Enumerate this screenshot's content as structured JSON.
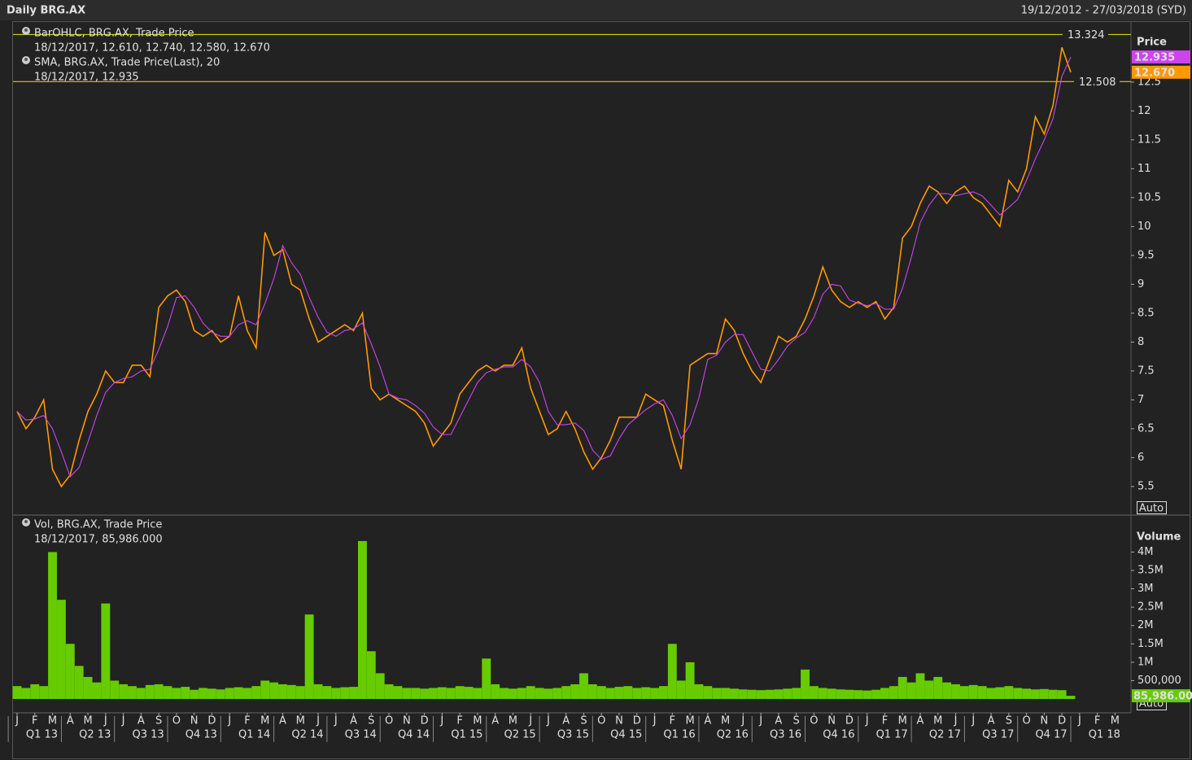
{
  "chart_data": [
    {
      "type": "line",
      "title": "Daily BRG.AX",
      "subtitle": "19/12/2012 - 27/03/2018 (SYD)",
      "y_label": "Price",
      "scale_mode": "Auto",
      "grid": false,
      "xlim": [
        -0.23,
        62.9
      ],
      "ylim": [
        5.02,
        13.54
      ],
      "yticks": [
        5.5,
        6,
        6.5,
        7,
        7.5,
        8,
        8.5,
        9,
        9.5,
        10,
        10.5,
        11,
        11.5,
        12,
        12.5
      ],
      "hlines": [
        13.324,
        12.508
      ],
      "hline_color": "#e8e800",
      "x": [
        0,
        0.5,
        1,
        1.5,
        2,
        2.5,
        3,
        3.5,
        4,
        4.5,
        5,
        5.5,
        6,
        6.5,
        7,
        7.5,
        8,
        8.5,
        9,
        9.5,
        10,
        10.5,
        11,
        11.5,
        12,
        12.5,
        13,
        13.5,
        14,
        14.5,
        15,
        15.5,
        16,
        16.5,
        17,
        17.5,
        18,
        18.5,
        19,
        19.5,
        20,
        20.5,
        21,
        21.5,
        22,
        22.5,
        23,
        23.5,
        24,
        24.5,
        25,
        25.5,
        26,
        26.5,
        27,
        27.5,
        28,
        28.5,
        29,
        29.5,
        30,
        30.5,
        31,
        31.5,
        32,
        32.5,
        33,
        33.5,
        34,
        34.5,
        35,
        35.5,
        36,
        36.5,
        37,
        37.5,
        38,
        38.5,
        39,
        39.5,
        40,
        40.5,
        41,
        41.5,
        42,
        42.5,
        43,
        43.5,
        44,
        44.5,
        45,
        45.5,
        46,
        46.5,
        47,
        47.5,
        48,
        48.5,
        49,
        49.5,
        50,
        50.5,
        51,
        51.5,
        52,
        52.5,
        53,
        53.5,
        54,
        54.5,
        55,
        55.5,
        56,
        56.5,
        57,
        57.5,
        58,
        58.5,
        59,
        59.5
      ],
      "series": [
        {
          "name": "BarOHLC, BRG.AX, Trade Price",
          "annotation": "18/12/2017, 12.610, 12.740, 12.580, 12.670",
          "color": "#ff9900",
          "last_tag": {
            "value": 12.67,
            "label": "12.670"
          },
          "values": [
            6.8,
            6.5,
            6.7,
            7.0,
            5.8,
            5.5,
            5.7,
            6.3,
            6.8,
            7.1,
            7.5,
            7.3,
            7.3,
            7.6,
            7.6,
            7.4,
            8.6,
            8.8,
            8.9,
            8.7,
            8.2,
            8.1,
            8.2,
            8.0,
            8.1,
            8.8,
            8.2,
            7.9,
            9.9,
            9.5,
            9.6,
            9.0,
            8.9,
            8.4,
            8.0,
            8.1,
            8.2,
            8.3,
            8.2,
            8.5,
            7.2,
            7.0,
            7.1,
            7.0,
            6.9,
            6.8,
            6.6,
            6.2,
            6.4,
            6.6,
            7.1,
            7.3,
            7.5,
            7.6,
            7.5,
            7.6,
            7.6,
            7.9,
            7.2,
            6.8,
            6.4,
            6.5,
            6.8,
            6.5,
            6.1,
            5.8,
            6.0,
            6.3,
            6.7,
            6.7,
            6.7,
            7.1,
            7.0,
            6.9,
            6.3,
            5.8,
            7.6,
            7.7,
            7.8,
            7.8,
            8.4,
            8.2,
            7.8,
            7.5,
            7.3,
            7.7,
            8.1,
            8.0,
            8.1,
            8.4,
            8.8,
            9.3,
            8.9,
            8.7,
            8.6,
            8.7,
            8.6,
            8.7,
            8.4,
            8.6,
            9.8,
            10.0,
            10.4,
            10.7,
            10.6,
            10.4,
            10.6,
            10.7,
            10.5,
            10.4,
            10.2,
            10.0,
            10.8,
            10.6,
            11.0,
            11.9,
            11.6,
            12.1,
            13.1,
            12.67
          ]
        },
        {
          "name": "SMA, BRG.AX, Trade Price(Last),  20",
          "annotation": "18/12/2017, 12.935",
          "color": "#cc44ee",
          "last_tag": 12.935,
          "values": [
            6.8,
            6.65,
            6.67,
            6.73,
            6.5,
            6.1,
            5.67,
            5.83,
            6.27,
            6.73,
            7.13,
            7.3,
            7.37,
            7.4,
            7.5,
            7.53,
            7.87,
            8.27,
            8.77,
            8.8,
            8.6,
            8.33,
            8.17,
            8.1,
            8.1,
            8.3,
            8.37,
            8.3,
            8.67,
            9.1,
            9.67,
            9.37,
            9.17,
            8.77,
            8.43,
            8.17,
            8.1,
            8.2,
            8.23,
            8.33,
            7.97,
            7.57,
            7.1,
            7.03,
            7.0,
            6.9,
            6.77,
            6.53,
            6.4,
            6.4,
            6.7,
            7.0,
            7.3,
            7.47,
            7.53,
            7.57,
            7.57,
            7.7,
            7.57,
            7.3,
            6.8,
            6.57,
            6.57,
            6.6,
            6.47,
            6.13,
            5.97,
            6.03,
            6.33,
            6.57,
            6.7,
            6.83,
            6.93,
            7.0,
            6.73,
            6.33,
            6.57,
            7.03,
            7.7,
            7.77,
            8.0,
            8.13,
            8.13,
            7.83,
            7.53,
            7.5,
            7.7,
            7.93,
            8.07,
            8.17,
            8.43,
            8.83,
            9.0,
            8.97,
            8.73,
            8.67,
            8.63,
            8.67,
            8.57,
            8.57,
            8.93,
            9.47,
            10.07,
            10.37,
            10.57,
            10.57,
            10.53,
            10.57,
            10.6,
            10.53,
            10.37,
            10.2,
            10.33,
            10.47,
            10.8,
            11.17,
            11.5,
            11.87,
            12.6,
            12.935
          ]
        }
      ]
    },
    {
      "type": "bar",
      "y_label": "Volume",
      "scale_mode": "Auto",
      "grid": false,
      "name": "Vol, BRG.AX, Trade Price",
      "annotation": "18/12/2017, 85,986.000",
      "color": "#66cc00",
      "last_tag": {
        "value": 85986,
        "label": "85,986.00"
      },
      "xlim": [
        -0.23,
        62.9
      ],
      "ylim": [
        0,
        4985000
      ],
      "yticks": [
        {
          "value": 500000,
          "label": "500,000"
        },
        {
          "value": 1000000,
          "label": "1M"
        },
        {
          "value": 1500000,
          "label": "1.5M"
        },
        {
          "value": 2000000,
          "label": "2M"
        },
        {
          "value": 2500000,
          "label": "2.5M"
        },
        {
          "value": 3000000,
          "label": "3M"
        },
        {
          "value": 3500000,
          "label": "3.5M"
        },
        {
          "value": 4000000,
          "label": "4M"
        }
      ],
      "x": [
        0,
        0.5,
        1,
        1.5,
        2,
        2.5,
        3,
        3.5,
        4,
        4.5,
        5,
        5.5,
        6,
        6.5,
        7,
        7.5,
        8,
        8.5,
        9,
        9.5,
        10,
        10.5,
        11,
        11.5,
        12,
        12.5,
        13,
        13.5,
        14,
        14.5,
        15,
        15.5,
        16,
        16.5,
        17,
        17.5,
        18,
        18.5,
        19,
        19.5,
        20,
        20.5,
        21,
        21.5,
        22,
        22.5,
        23,
        23.5,
        24,
        24.5,
        25,
        25.5,
        26,
        26.5,
        27,
        27.5,
        28,
        28.5,
        29,
        29.5,
        30,
        30.5,
        31,
        31.5,
        32,
        32.5,
        33,
        33.5,
        34,
        34.5,
        35,
        35.5,
        36,
        36.5,
        37,
        37.5,
        38,
        38.5,
        39,
        39.5,
        40,
        40.5,
        41,
        41.5,
        42,
        42.5,
        43,
        43.5,
        44,
        44.5,
        45,
        45.5,
        46,
        46.5,
        47,
        47.5,
        48,
        48.5,
        49,
        49.5,
        50,
        50.5,
        51,
        51.5,
        52,
        52.5,
        53,
        53.5,
        54,
        54.5,
        55,
        55.5,
        56,
        56.5,
        57,
        57.5,
        58,
        58.5,
        59,
        59.5
      ],
      "values": [
        350000,
        300000,
        400000,
        350000,
        4000000,
        2700000,
        1500000,
        900000,
        600000,
        450000,
        2600000,
        500000,
        400000,
        350000,
        300000,
        380000,
        400000,
        350000,
        300000,
        330000,
        250000,
        300000,
        280000,
        260000,
        300000,
        320000,
        300000,
        350000,
        500000,
        450000,
        400000,
        380000,
        350000,
        2300000,
        400000,
        350000,
        300000,
        320000,
        330000,
        4300000,
        1300000,
        700000,
        400000,
        350000,
        300000,
        300000,
        280000,
        300000,
        320000,
        300000,
        350000,
        330000,
        300000,
        1100000,
        400000,
        300000,
        280000,
        300000,
        350000,
        300000,
        280000,
        300000,
        350000,
        400000,
        700000,
        400000,
        350000,
        300000,
        330000,
        350000,
        300000,
        320000,
        300000,
        350000,
        1500000,
        500000,
        1000000,
        400000,
        350000,
        300000,
        300000,
        280000,
        260000,
        250000,
        240000,
        250000,
        260000,
        280000,
        300000,
        800000,
        350000,
        300000,
        280000,
        260000,
        250000,
        240000,
        230000,
        250000,
        300000,
        350000,
        600000,
        450000,
        700000,
        500000,
        600000,
        450000,
        400000,
        350000,
        380000,
        350000,
        300000,
        320000,
        350000,
        300000,
        280000,
        260000,
        270000,
        250000,
        240000,
        85986
      ],
      "xticks": [
        {
          "value": 0,
          "label": "J"
        },
        {
          "value": 1,
          "label": "F"
        },
        {
          "value": 2,
          "label": "M"
        },
        {
          "value": 3,
          "label": "A"
        },
        {
          "value": 4,
          "label": "M"
        },
        {
          "value": 5,
          "label": "J"
        },
        {
          "value": 6,
          "label": "J"
        },
        {
          "value": 7,
          "label": "A"
        },
        {
          "value": 8,
          "label": "S"
        },
        {
          "value": 9,
          "label": "O"
        },
        {
          "value": 10,
          "label": "N"
        },
        {
          "value": 11,
          "label": "D"
        },
        {
          "value": 12,
          "label": "J"
        },
        {
          "value": 13,
          "label": "F"
        },
        {
          "value": 14,
          "label": "M"
        },
        {
          "value": 15,
          "label": "A"
        },
        {
          "value": 16,
          "label": "M"
        },
        {
          "value": 17,
          "label": "J"
        },
        {
          "value": 18,
          "label": "J"
        },
        {
          "value": 19,
          "label": "A"
        },
        {
          "value": 20,
          "label": "S"
        },
        {
          "value": 21,
          "label": "O"
        },
        {
          "value": 22,
          "label": "N"
        },
        {
          "value": 23,
          "label": "D"
        },
        {
          "value": 24,
          "label": "J"
        },
        {
          "value": 25,
          "label": "F"
        },
        {
          "value": 26,
          "label": "M"
        },
        {
          "value": 27,
          "label": "A"
        },
        {
          "value": 28,
          "label": "M"
        },
        {
          "value": 29,
          "label": "J"
        },
        {
          "value": 30,
          "label": "J"
        },
        {
          "value": 31,
          "label": "A"
        },
        {
          "value": 32,
          "label": "S"
        },
        {
          "value": 33,
          "label": "O"
        },
        {
          "value": 34,
          "label": "N"
        },
        {
          "value": 35,
          "label": "D"
        },
        {
          "value": 36,
          "label": "J"
        },
        {
          "value": 37,
          "label": "F"
        },
        {
          "value": 38,
          "label": "M"
        },
        {
          "value": 39,
          "label": "A"
        },
        {
          "value": 40,
          "label": "M"
        },
        {
          "value": 41,
          "label": "J"
        },
        {
          "value": 42,
          "label": "J"
        },
        {
          "value": 43,
          "label": "A"
        },
        {
          "value": 44,
          "label": "S"
        },
        {
          "value": 45,
          "label": "O"
        },
        {
          "value": 46,
          "label": "N"
        },
        {
          "value": 47,
          "label": "D"
        },
        {
          "value": 48,
          "label": "J"
        },
        {
          "value": 49,
          "label": "F"
        },
        {
          "value": 50,
          "label": "M"
        },
        {
          "value": 51,
          "label": "A"
        },
        {
          "value": 52,
          "label": "M"
        },
        {
          "value": 53,
          "label": "J"
        },
        {
          "value": 54,
          "label": "J"
        },
        {
          "value": 55,
          "label": "A"
        },
        {
          "value": 56,
          "label": "S"
        },
        {
          "value": 57,
          "label": "O"
        },
        {
          "value": 58,
          "label": "N"
        },
        {
          "value": 59,
          "label": "D"
        },
        {
          "value": 60,
          "label": "J"
        },
        {
          "value": 61,
          "label": "F"
        },
        {
          "value": 62,
          "label": "M"
        }
      ],
      "quarters": [
        "Q1 13",
        "Q2 13",
        "Q3 13",
        "Q4 13",
        "Q1 14",
        "Q2 14",
        "Q3 14",
        "Q4 14",
        "Q1 15",
        "Q2 15",
        "Q3 15",
        "Q4 15",
        "Q1 16",
        "Q2 16",
        "Q3 16",
        "Q4 16",
        "Q1 17",
        "Q2 17",
        "Q3 17",
        "Q4 17",
        "Q1 18"
      ]
    }
  ]
}
